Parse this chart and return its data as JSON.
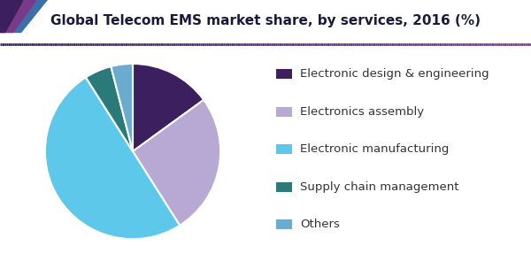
{
  "title": "Global Telecom EMS market share, by services, 2016 (%)",
  "labels": [
    "Electronic design & engineering",
    "Electronics assembly",
    "Electronic manufacturing",
    "Supply chain management",
    "Others"
  ],
  "sizes": [
    15,
    26,
    50,
    5,
    4
  ],
  "colors": [
    "#3b1f5e",
    "#b8a8d4",
    "#5ec8ea",
    "#2a7a7a",
    "#6aabcf"
  ],
  "start_angle": 90,
  "title_fontsize": 11,
  "legend_fontsize": 9.5,
  "title_color": "#1a1a3a",
  "line_color_left": "#3b1f5e",
  "line_color_right": "#7a3a8a",
  "background_color": "#ffffff",
  "wedge_edgecolor": "#ffffff",
  "wedge_linewidth": 1.5,
  "left_decoration_colors": [
    "#3b1f5e",
    "#5a2d82",
    "#7a3a8a"
  ],
  "legend_marker_size": 0.045
}
